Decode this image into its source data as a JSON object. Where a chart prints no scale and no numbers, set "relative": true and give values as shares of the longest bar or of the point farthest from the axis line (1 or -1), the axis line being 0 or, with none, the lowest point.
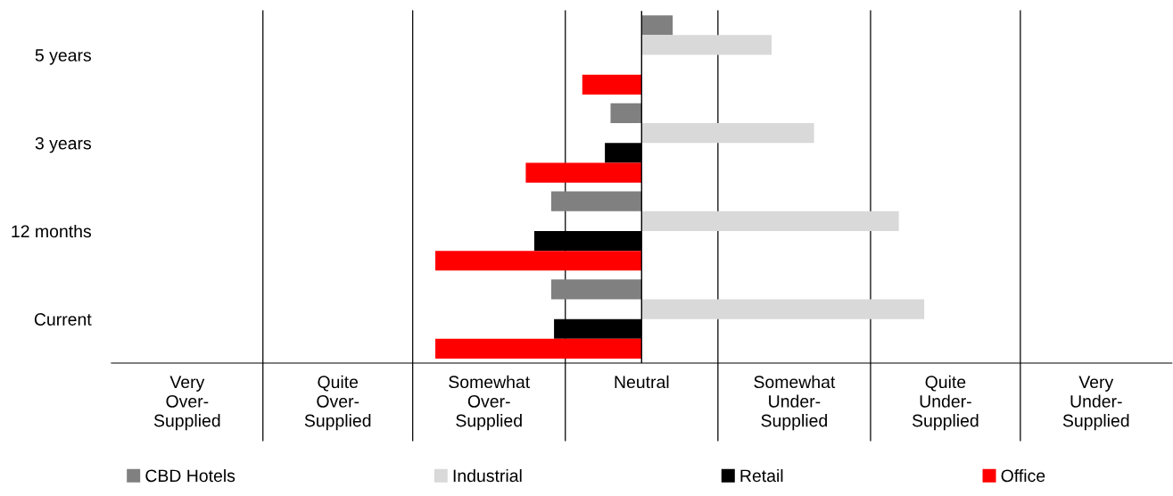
{
  "chart_data": {
    "type": "bar",
    "orientation": "horizontal",
    "relative": true,
    "categories": [
      "5 years",
      "3 years",
      "12 months",
      "Current"
    ],
    "series": [
      {
        "name": "CBD Hotels",
        "color": "#808080",
        "values": [
          0.11,
          -0.11,
          -0.32,
          -0.32
        ]
      },
      {
        "name": "Industrial",
        "color": "#d9d9d9",
        "values": [
          0.46,
          0.61,
          0.91,
          1
        ]
      },
      {
        "name": "Retail",
        "color": "#000000",
        "values": [
          null,
          -0.13,
          -0.38,
          -0.31
        ]
      },
      {
        "name": "Office",
        "color": "#ff0000",
        "values": [
          -0.21,
          -0.41,
          -0.73,
          -0.73
        ]
      }
    ],
    "annotations": [
      "Very\nOver-\nSupplied",
      "Quite\nOver-\nSupplied",
      "Somewhat\nOver-\nSupplied",
      "Neutral",
      "Somewhat\nUnder-\nSupplied",
      "Quite\nUnder-\nSupplied",
      "Very\nUnder-\nSupplied"
    ],
    "ref_lines": [
      {
        "axis": "x",
        "value": -1.34,
        "color": "#000000"
      },
      {
        "axis": "x",
        "value": -0.81,
        "color": "#000000"
      },
      {
        "axis": "x",
        "value": -0.27,
        "color": "#000000"
      },
      {
        "axis": "x",
        "value": 0.27,
        "color": "#000000"
      },
      {
        "axis": "x",
        "value": 0.81,
        "color": "#000000"
      },
      {
        "axis": "x",
        "value": 1.34,
        "color": "#000000"
      }
    ],
    "grid": false,
    "legend": "bottom"
  }
}
